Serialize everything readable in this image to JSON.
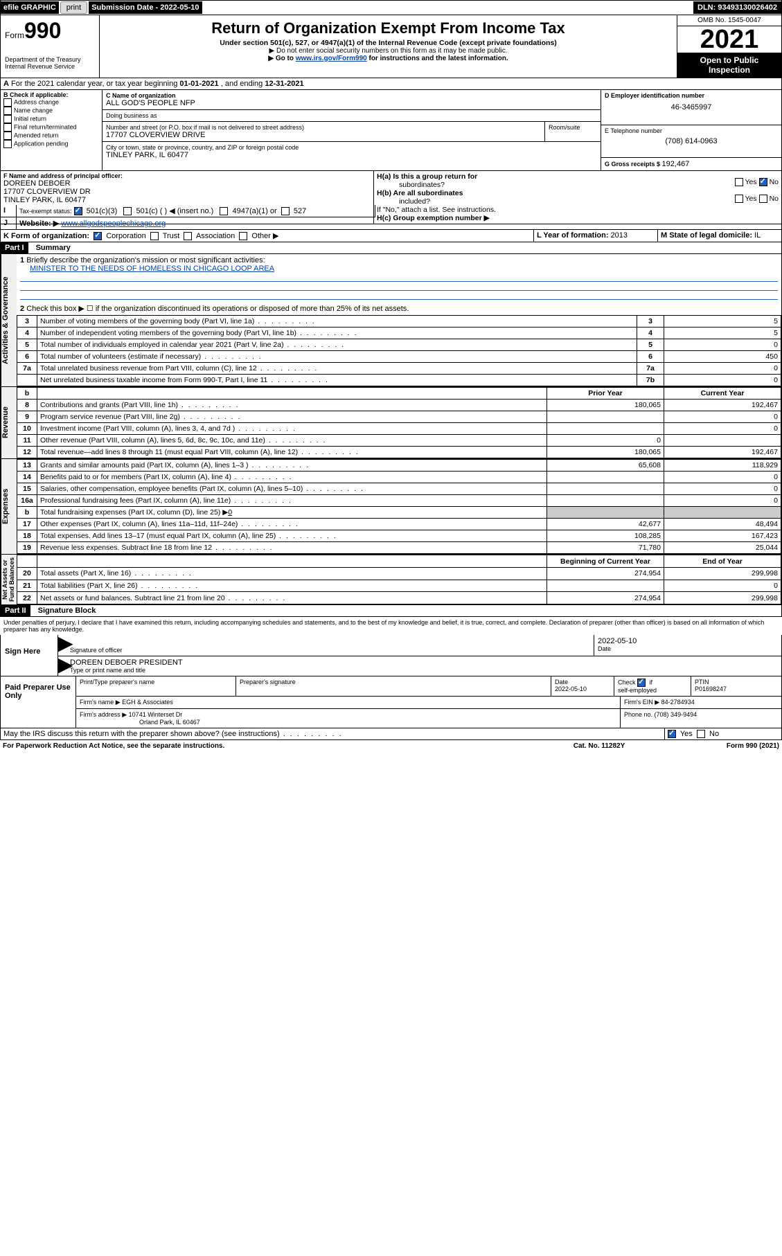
{
  "topbar": {
    "efile": "efile GRAPHIC",
    "print": "print",
    "sub_lbl": "Submission Date - ",
    "sub_date": "2022-05-10",
    "dln_lbl": "DLN: ",
    "dln": "93493130026402"
  },
  "hdr": {
    "form": "Form",
    "num": "990",
    "dept": "Department of the Treasury",
    "irs": "Internal Revenue Service",
    "title": "Return of Organization Exempt From Income Tax",
    "sub": "Under section 501(c), 527, or 4947(a)(1) of the Internal Revenue Code (except private foundations)",
    "note1": "▶ Do not enter social security numbers on this form as it may be made public.",
    "note2a": "▶ Go to ",
    "note2link": "www.irs.gov/Form990",
    "note2b": " for instructions and the latest information.",
    "omb": "OMB No. 1545-0047",
    "year": "2021",
    "insp1": "Open to Public",
    "insp2": "Inspection"
  },
  "A": {
    "text": "For the 2021 calendar year, or tax year beginning ",
    "begin": "01-01-2021",
    "mid": "   , and ending ",
    "end": "12-31-2021"
  },
  "B": {
    "lbl": "B Check if applicable:",
    "opts": [
      "Address change",
      "Name change",
      "Initial return",
      "Final return/terminated",
      "Amended return",
      "Application pending"
    ]
  },
  "C": {
    "lbl": "C Name of organization",
    "name": "ALL GOD'S PEOPLE NFP",
    "dba_lbl": "Doing business as",
    "dba": "",
    "addr_lbl": "Number and street (or P.O. box if mail is not delivered to street address)",
    "room_lbl": "Room/suite",
    "addr": "17707 CLOVERVIEW DRIVE",
    "city_lbl": "City or town, state or province, country, and ZIP or foreign postal code",
    "city": "TINLEY PARK, IL  60477"
  },
  "D": {
    "lbl": "D Employer identification number",
    "val": "46-3465997"
  },
  "E": {
    "lbl": "E Telephone number",
    "val": "(708) 614-0963"
  },
  "G": {
    "lbl": "G Gross receipts $ ",
    "val": "192,467"
  },
  "F": {
    "lbl": "F Name and address of principal officer:",
    "name": "DOREEN DEBOER",
    "addr1": "17707 CLOVERVIEW DR",
    "addr2": "TINLEY PARK, IL  60477"
  },
  "H": {
    "a": "H(a) Is this a group return for",
    "a2": "subordinates?",
    "b": "H(b) Are all subordinates",
    "b2": "included?",
    "note": "If \"No,\" attach a list. See instructions.",
    "c": "H(c) Group exemption number ▶",
    "yes": "Yes",
    "no": "No"
  },
  "I": {
    "lbl": "Tax-exempt status:",
    "o1": "501(c)(3)",
    "o2": "501(c) (   ) ◀ (insert no.)",
    "o3": "4947(a)(1) or",
    "o4": "527"
  },
  "J": {
    "lbl": "Website: ▶",
    "val": "www.allgodspeoplechicago.org"
  },
  "K": {
    "lbl": "K Form of organization:",
    "o1": "Corporation",
    "o2": "Trust",
    "o3": "Association",
    "o4": "Other ▶"
  },
  "L": {
    "lbl": "L Year of formation: ",
    "val": "2013"
  },
  "M": {
    "lbl": "M State of legal domicile: ",
    "val": "IL"
  },
  "part1": {
    "bar": "Part I",
    "title": "Summary"
  },
  "summary": {
    "l1": "Briefly describe the organization's mission or most significant activities:",
    "mission": "MINISTER TO THE NEEDS OF HOMELESS IN CHICAGO LOOP AREA",
    "l2": "Check this box ▶ ☐ if the organization discontinued its operations or disposed of more than 25% of its net assets.",
    "rows": [
      {
        "n": "3",
        "t": "Number of voting members of the governing body (Part VI, line 1a)",
        "rn": "3",
        "v": "5"
      },
      {
        "n": "4",
        "t": "Number of independent voting members of the governing body (Part VI, line 1b)",
        "rn": "4",
        "v": "5"
      },
      {
        "n": "5",
        "t": "Total number of individuals employed in calendar year 2021 (Part V, line 2a)",
        "rn": "5",
        "v": "0"
      },
      {
        "n": "6",
        "t": "Total number of volunteers (estimate if necessary)",
        "rn": "6",
        "v": "450"
      },
      {
        "n": "7a",
        "t": "Total unrelated business revenue from Part VIII, column (C), line 12",
        "rn": "7a",
        "v": "0"
      },
      {
        "n": "",
        "t": "Net unrelated business taxable income from Form 990-T, Part I, line 11",
        "rn": "7b",
        "v": "0"
      }
    ],
    "py": "Prior Year",
    "cy": "Current Year",
    "b": "b",
    "rev": [
      {
        "n": "8",
        "t": "Contributions and grants (Part VIII, line 1h)",
        "p": "180,065",
        "c": "192,467"
      },
      {
        "n": "9",
        "t": "Program service revenue (Part VIII, line 2g)",
        "p": "",
        "c": "0"
      },
      {
        "n": "10",
        "t": "Investment income (Part VIII, column (A), lines 3, 4, and 7d )",
        "p": "",
        "c": "0"
      },
      {
        "n": "11",
        "t": "Other revenue (Part VIII, column (A), lines 5, 6d, 8c, 9c, 10c, and 11e)",
        "p": "0",
        "c": ""
      },
      {
        "n": "12",
        "t": "Total revenue—add lines 8 through 11 (must equal Part VIII, column (A), line 12)",
        "p": "180,065",
        "c": "192,467"
      }
    ],
    "exp": [
      {
        "n": "13",
        "t": "Grants and similar amounts paid (Part IX, column (A), lines 1–3 )",
        "p": "65,608",
        "c": "118,929"
      },
      {
        "n": "14",
        "t": "Benefits paid to or for members (Part IX, column (A), line 4)",
        "p": "",
        "c": "0"
      },
      {
        "n": "15",
        "t": "Salaries, other compensation, employee benefits (Part IX, column (A), lines 5–10)",
        "p": "",
        "c": "0"
      },
      {
        "n": "16a",
        "t": "Professional fundraising fees (Part IX, column (A), line 11e)",
        "p": "",
        "c": "0"
      }
    ],
    "l16b": "Total fundraising expenses (Part IX, column (D), line 25) ▶",
    "l16bv": "0",
    "exp2": [
      {
        "n": "17",
        "t": "Other expenses (Part IX, column (A), lines 11a–11d, 11f–24e)",
        "p": "42,677",
        "c": "48,494"
      },
      {
        "n": "18",
        "t": "Total expenses. Add lines 13–17 (must equal Part IX, column (A), line 25)",
        "p": "108,285",
        "c": "167,423"
      },
      {
        "n": "19",
        "t": "Revenue less expenses. Subtract line 18 from line 12",
        "p": "71,780",
        "c": "25,044"
      }
    ],
    "boy": "Beginning of Current Year",
    "eoy": "End of Year",
    "na": [
      {
        "n": "20",
        "t": "Total assets (Part X, line 16)",
        "p": "274,954",
        "c": "299,998"
      },
      {
        "n": "21",
        "t": "Total liabilities (Part X, line 26)",
        "p": "",
        "c": "0"
      },
      {
        "n": "22",
        "t": "Net assets or fund balances. Subtract line 21 from line 20",
        "p": "274,954",
        "c": "299,998"
      }
    ]
  },
  "sides": {
    "ag": "Activities & Governance",
    "rev": "Revenue",
    "exp": "Expenses",
    "na": "Net Assets or\nFund Balances"
  },
  "part2": {
    "bar": "Part II",
    "title": "Signature Block"
  },
  "sig": {
    "perjury": "Under penalties of perjury, I declare that I have examined this return, including accompanying schedules and statements, and to the best of my knowledge and belief, it is true, correct, and complete. Declaration of preparer (other than officer) is based on all information of which preparer has any knowledge.",
    "here": "Sign Here",
    "sigoff": "Signature of officer",
    "date": "Date",
    "sigdate": "2022-05-10",
    "name": "DOREEN DEBOER  PRESIDENT",
    "typelbl": "Type or print name and title",
    "paid": "Paid Preparer Use Only",
    "pname_lbl": "Print/Type preparer's name",
    "psig_lbl": "Preparer's signature",
    "pdate_lbl": "Date",
    "pdate": "2022-05-10",
    "chk_lbl": "Check",
    "chk_if": "if",
    "self": "self-employed",
    "ptin_lbl": "PTIN",
    "ptin": "P01698247",
    "firm_lbl": "Firm's name    ▶",
    "firm": "EGH & Associates",
    "ein_lbl": "Firm's EIN ▶",
    "ein": "84-2784934",
    "faddr_lbl": "Firm's address ▶",
    "faddr1": "10741 Winterset Dr",
    "faddr2": "Orland Park, IL  60467",
    "phone_lbl": "Phone no. ",
    "phone": "(708) 349-9494",
    "discuss": "May the IRS discuss this return with the preparer shown above? (see instructions)"
  },
  "footer": {
    "pra": "For Paperwork Reduction Act Notice, see the separate instructions.",
    "cat": "Cat. No. 11282Y",
    "form": "Form 990 (2021)"
  }
}
